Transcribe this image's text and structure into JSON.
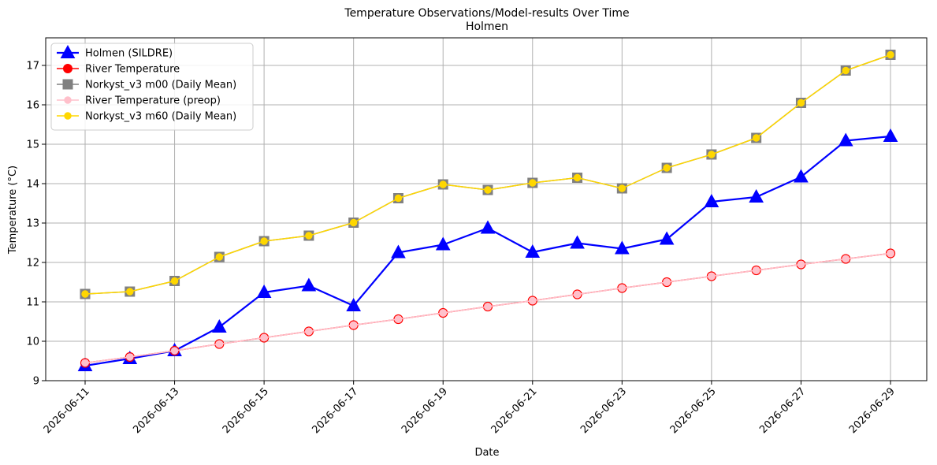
{
  "chart_data": {
    "type": "line",
    "title": "Temperature Observations/Model-results Over Time",
    "subtitle": "Holmen",
    "xlabel": "Date",
    "ylabel": "Temperature (°C)",
    "ylim": [
      9.0,
      17.7
    ],
    "yticks": [
      9,
      10,
      11,
      12,
      13,
      14,
      15,
      16,
      17
    ],
    "x": [
      "2026-06-11",
      "2026-06-12",
      "2026-06-13",
      "2026-06-14",
      "2026-06-15",
      "2026-06-16",
      "2026-06-17",
      "2026-06-18",
      "2026-06-19",
      "2026-06-20",
      "2026-06-21",
      "2026-06-22",
      "2026-06-23",
      "2026-06-24",
      "2026-06-25",
      "2026-06-26",
      "2026-06-27",
      "2026-06-28",
      "2026-06-29"
    ],
    "xticks": [
      "2026-06-11",
      "2026-06-13",
      "2026-06-15",
      "2026-06-17",
      "2026-06-19",
      "2026-06-21",
      "2026-06-23",
      "2026-06-25",
      "2026-06-27",
      "2026-06-29"
    ],
    "grid": true,
    "legend_position": "top-left",
    "series": [
      {
        "name": "Holmen (SILDRE)",
        "color": "#0000ff",
        "marker": "triangle",
        "values": [
          9.38,
          9.56,
          9.76,
          10.36,
          11.24,
          11.41,
          10.9,
          12.25,
          12.45,
          12.87,
          12.26,
          12.49,
          12.35,
          12.59,
          13.54,
          13.66,
          14.17,
          15.09,
          15.2
        ]
      },
      {
        "name": "River Temperature",
        "color": "#ff0000",
        "marker": "circle",
        "values": [
          9.45,
          9.6,
          9.76,
          9.93,
          10.09,
          10.25,
          10.41,
          10.56,
          10.72,
          10.88,
          11.03,
          11.19,
          11.35,
          11.5,
          11.65,
          11.8,
          11.95,
          12.09,
          12.23
        ]
      },
      {
        "name": "Norkyst_v3 m00 (Daily Mean)",
        "color": "#808080",
        "marker": "square",
        "values": [
          11.2,
          11.26,
          11.53,
          12.14,
          12.54,
          12.68,
          13.01,
          13.63,
          13.98,
          13.84,
          14.02,
          14.15,
          13.88,
          14.4,
          14.74,
          15.16,
          16.05,
          16.87,
          17.27
        ]
      },
      {
        "name": "River Temperature (preop)",
        "color": "#ffc0cb",
        "marker": "small-circle",
        "values": [
          9.45,
          9.6,
          9.76,
          9.93,
          10.09,
          10.25,
          10.41,
          10.56,
          10.72,
          10.88,
          11.03,
          11.19,
          11.35,
          11.5,
          11.65,
          11.8,
          11.95,
          12.09,
          12.23
        ]
      },
      {
        "name": "Norkyst_v3 m60 (Daily Mean)",
        "color": "#ffd700",
        "marker": "small-circle",
        "values": [
          11.2,
          11.26,
          11.53,
          12.14,
          12.54,
          12.68,
          13.01,
          13.63,
          13.98,
          13.84,
          14.02,
          14.15,
          13.88,
          14.4,
          14.74,
          15.16,
          16.05,
          16.87,
          17.27
        ]
      }
    ]
  }
}
